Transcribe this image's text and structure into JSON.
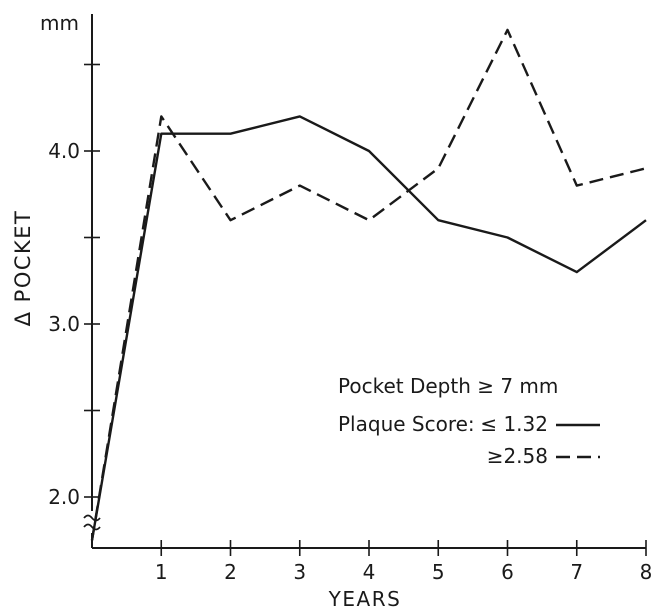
{
  "chart_data": {
    "type": "line",
    "y_unit": "mm",
    "ylabel": "Δ POCKET",
    "xlabel": "YEARS",
    "x_ticks": [
      "1",
      "2",
      "3",
      "4",
      "5",
      "6",
      "7",
      "8"
    ],
    "y_ticks": [
      "2.0",
      "3.0",
      "4.0"
    ],
    "ylim": [
      1.7,
      4.75
    ],
    "xlim": [
      0,
      8
    ],
    "y_axis_break": true,
    "grid": false,
    "legend_title": "Pocket Depth ≥ 7 mm",
    "legend_subtitle": "Plaque Score:",
    "legend_placement": "bottom-right",
    "series": [
      {
        "name": "≤ 1.32",
        "style": "solid",
        "x": [
          0,
          1,
          2,
          3,
          4,
          5,
          6,
          7,
          8
        ],
        "values": [
          1.75,
          4.1,
          4.1,
          4.2,
          4.0,
          3.6,
          3.5,
          3.3,
          3.6
        ]
      },
      {
        "name": "≥2.58",
        "style": "dashed",
        "x": [
          0,
          1,
          2,
          3,
          4,
          5,
          6,
          7,
          8
        ],
        "values": [
          1.75,
          4.2,
          3.6,
          3.8,
          3.6,
          3.9,
          4.7,
          3.8,
          3.9
        ]
      }
    ]
  }
}
